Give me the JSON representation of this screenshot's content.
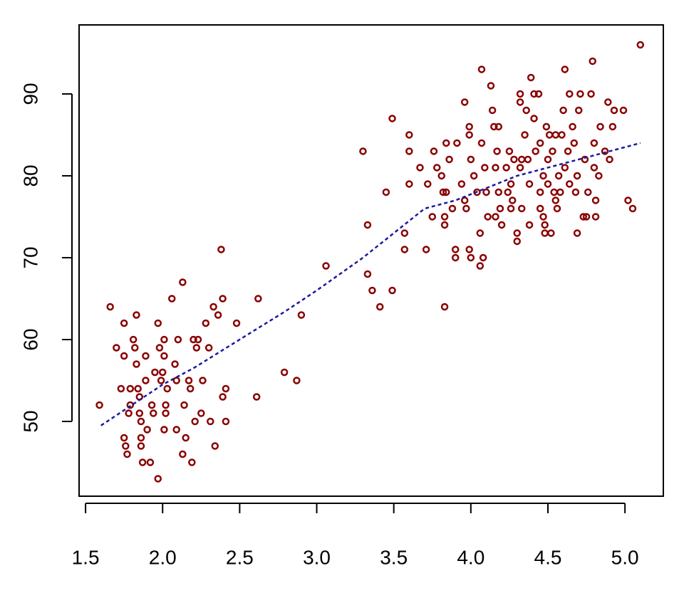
{
  "chart_data": {
    "type": "scatter",
    "series": [
      {
        "color": "#8b0000",
        "x": [
          1.59,
          1.66,
          1.7,
          1.73,
          1.75,
          1.75,
          1.75,
          1.76,
          1.77,
          1.79,
          1.78,
          1.79,
          1.81,
          1.82,
          1.83,
          1.83,
          1.84,
          1.85,
          1.85,
          1.86,
          1.86,
          1.86,
          1.87,
          1.89,
          1.89,
          1.9,
          1.92,
          1.93,
          1.94,
          1.95,
          1.97,
          1.98,
          1.99,
          1.97,
          2.0,
          2.01,
          2.01,
          2.01,
          2.02,
          2.02,
          2.03,
          2.06,
          2.08,
          2.09,
          2.09,
          2.1,
          2.13,
          2.14,
          2.15,
          2.13,
          2.17,
          2.18,
          2.19,
          2.2,
          2.21,
          2.22,
          2.23,
          2.25,
          2.26,
          2.28,
          2.3,
          2.31,
          2.33,
          2.34,
          2.36,
          2.38,
          2.39,
          2.39,
          2.41,
          2.41,
          2.48,
          2.62,
          2.61,
          2.79,
          2.87,
          2.9,
          3.06,
          3.3,
          3.33,
          3.33,
          3.36,
          3.41,
          3.45,
          3.49,
          3.49,
          3.57,
          3.57,
          3.6,
          3.6,
          3.6,
          3.67,
          3.71,
          3.72,
          3.75,
          3.76,
          3.78,
          3.81,
          3.82,
          3.84,
          3.83,
          3.83,
          3.83,
          3.84,
          3.86,
          3.88,
          3.9,
          3.9,
          3.91,
          3.94,
          3.96,
          3.96,
          3.97,
          3.99,
          3.99,
          3.99,
          4.0,
          4.0,
          4.02,
          4.04,
          4.06,
          4.06,
          4.07,
          4.07,
          4.08,
          4.09,
          4.1,
          4.11,
          4.13,
          4.14,
          4.15,
          4.16,
          4.16,
          4.17,
          4.18,
          4.18,
          4.19,
          4.2,
          4.23,
          4.24,
          4.25,
          4.26,
          4.26,
          4.27,
          4.28,
          4.3,
          4.3,
          4.32,
          4.32,
          4.32,
          4.33,
          4.33,
          4.35,
          4.36,
          4.37,
          4.38,
          4.38,
          4.39,
          4.41,
          4.41,
          4.42,
          4.44,
          4.45,
          4.45,
          4.45,
          4.47,
          4.47,
          4.48,
          4.48,
          4.49,
          4.5,
          4.5,
          4.51,
          4.52,
          4.53,
          4.54,
          4.55,
          4.55,
          4.56,
          4.57,
          4.58,
          4.59,
          4.61,
          4.6,
          4.61,
          4.63,
          4.64,
          4.64,
          4.66,
          4.67,
          4.68,
          4.69,
          4.69,
          4.7,
          4.71,
          4.73,
          4.74,
          4.75,
          4.76,
          4.78,
          4.79,
          4.8,
          4.8,
          4.81,
          4.81,
          4.83,
          4.84,
          4.87,
          4.89,
          4.9,
          4.92,
          4.93,
          4.99,
          5.02,
          5.05,
          5.1
        ],
        "y": [
          52,
          64,
          59,
          54,
          62,
          58,
          48,
          47,
          46,
          52,
          51,
          54,
          60,
          59,
          63,
          57,
          54,
          53,
          51,
          50,
          48,
          47,
          45,
          58,
          55,
          49,
          45,
          52,
          51,
          56,
          62,
          59,
          55,
          43,
          56,
          58,
          60,
          49,
          52,
          51,
          54,
          65,
          57,
          55,
          49,
          60,
          67,
          52,
          48,
          46,
          55,
          54,
          45,
          60,
          50,
          59,
          60,
          51,
          55,
          62,
          59,
          50,
          64,
          47,
          63,
          71,
          65,
          53,
          54,
          50,
          62,
          65,
          53,
          56,
          55,
          63,
          69,
          83,
          74,
          68,
          66,
          64,
          78,
          87,
          66,
          73,
          71,
          85,
          83,
          79,
          81,
          71,
          79,
          75,
          83,
          81,
          80,
          78,
          78,
          74,
          75,
          64,
          84,
          82,
          76,
          71,
          70,
          84,
          79,
          89,
          77,
          76,
          86,
          85,
          71,
          70,
          82,
          80,
          78,
          73,
          69,
          93,
          84,
          70,
          81,
          78,
          75,
          91,
          88,
          86,
          75,
          81,
          83,
          78,
          86,
          76,
          74,
          81,
          78,
          83,
          76,
          79,
          77,
          82,
          73,
          72,
          90,
          89,
          81,
          76,
          82,
          85,
          88,
          82,
          79,
          74,
          92,
          90,
          87,
          83,
          90,
          78,
          76,
          84,
          80,
          75,
          74,
          73,
          86,
          82,
          79,
          85,
          73,
          83,
          78,
          85,
          77,
          76,
          80,
          78,
          85,
          93,
          88,
          81,
          83,
          79,
          90,
          86,
          84,
          78,
          80,
          73,
          88,
          90,
          75,
          82,
          75,
          78,
          90,
          94,
          84,
          81,
          77,
          75,
          80,
          86,
          83,
          89,
          82,
          86,
          88,
          88,
          77,
          76,
          96
        ]
      },
      {
        "type": "line",
        "color": "#1a1aa0",
        "x": [
          1.6,
          1.8,
          2.0,
          2.2,
          2.5,
          2.8,
          3.0,
          3.3,
          3.5,
          3.7,
          3.9,
          4.1,
          4.3,
          4.5,
          4.7,
          4.9,
          5.1
        ],
        "y": [
          49.5,
          52,
          54.5,
          56.5,
          60,
          63.5,
          66,
          70,
          73,
          76,
          77,
          78.5,
          80,
          81,
          82,
          83,
          84
        ]
      }
    ],
    "xlim": [
      1.458,
      5.249
    ],
    "ylim": [
      40.87,
      98.43
    ],
    "xticks": [
      1.5,
      {
        "value": 2,
        "label": "2.0"
      },
      2.5,
      {
        "value": 3,
        "label": "3.0"
      },
      3.5,
      {
        "value": 4,
        "label": "4.0"
      },
      4.5,
      {
        "value": 5,
        "label": "5.0"
      }
    ],
    "yticks": [
      50,
      60,
      70,
      80,
      90
    ]
  }
}
